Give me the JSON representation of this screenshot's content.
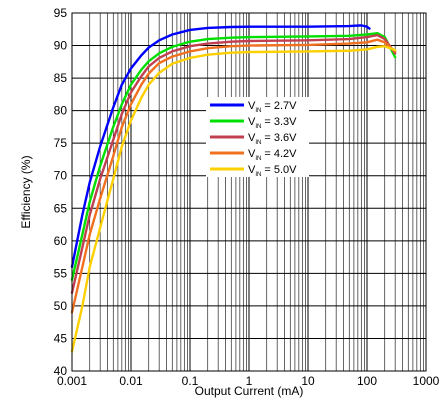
{
  "chart_data": {
    "type": "line",
    "title": "",
    "xlabel": "Output Current (mA)",
    "ylabel": "Efficiency (%)",
    "xscale": "log",
    "xlim": [
      0.001,
      1000
    ],
    "ylim": [
      40,
      95
    ],
    "x_ticks": [
      "0.001",
      "0.01",
      "0.1",
      "1",
      "10",
      "100",
      "1000"
    ],
    "y_ticks": [
      "40",
      "45",
      "50",
      "55",
      "60",
      "65",
      "70",
      "75",
      "80",
      "85",
      "90",
      "95"
    ],
    "grid": true,
    "legend_position": "center",
    "series": [
      {
        "name": "2.7V",
        "legend_prefix": "V",
        "legend_sub": "IN",
        "color": "#0000ff",
        "points": [
          [
            0.001,
            56
          ],
          [
            0.0015,
            64
          ],
          [
            0.002,
            69
          ],
          [
            0.003,
            74.5
          ],
          [
            0.005,
            80.5
          ],
          [
            0.007,
            84
          ],
          [
            0.01,
            86.5
          ],
          [
            0.015,
            88.5
          ],
          [
            0.02,
            89.7
          ],
          [
            0.03,
            90.8
          ],
          [
            0.05,
            91.7
          ],
          [
            0.1,
            92.4
          ],
          [
            0.2,
            92.7
          ],
          [
            0.5,
            92.85
          ],
          [
            1,
            92.9
          ],
          [
            10,
            92.9
          ],
          [
            50,
            93.0
          ],
          [
            80,
            93.1
          ],
          [
            100,
            92.9
          ],
          [
            110,
            92.6
          ]
        ]
      },
      {
        "name": "3.3V",
        "legend_prefix": "V",
        "legend_sub": "IN",
        "color": "#00e000",
        "points": [
          [
            0.001,
            54
          ],
          [
            0.0015,
            61
          ],
          [
            0.002,
            66
          ],
          [
            0.003,
            71.5
          ],
          [
            0.005,
            77.5
          ],
          [
            0.007,
            81
          ],
          [
            0.01,
            84
          ],
          [
            0.015,
            86.3
          ],
          [
            0.02,
            87.6
          ],
          [
            0.03,
            88.8
          ],
          [
            0.05,
            89.8
          ],
          [
            0.1,
            90.6
          ],
          [
            0.2,
            91.0
          ],
          [
            0.5,
            91.2
          ],
          [
            1,
            91.3
          ],
          [
            10,
            91.4
          ],
          [
            50,
            91.5
          ],
          [
            100,
            91.7
          ],
          [
            150,
            91.9
          ],
          [
            200,
            91.3
          ],
          [
            300,
            88.2
          ]
        ]
      },
      {
        "name": "3.6V",
        "legend_prefix": "V",
        "legend_sub": "IN",
        "color": "#c04050",
        "points": [
          [
            0.001,
            52
          ],
          [
            0.0015,
            59
          ],
          [
            0.002,
            64
          ],
          [
            0.003,
            69.5
          ],
          [
            0.005,
            75.5
          ],
          [
            0.007,
            79.5
          ],
          [
            0.01,
            82.8
          ],
          [
            0.015,
            85.3
          ],
          [
            0.02,
            86.8
          ],
          [
            0.03,
            88.1
          ],
          [
            0.05,
            89.1
          ],
          [
            0.1,
            89.9
          ],
          [
            0.2,
            90.3
          ],
          [
            0.5,
            90.6
          ],
          [
            1,
            90.7
          ],
          [
            10,
            90.8
          ],
          [
            50,
            91.0
          ],
          [
            100,
            91.3
          ],
          [
            150,
            91.6
          ],
          [
            200,
            91.0
          ],
          [
            300,
            88.8
          ]
        ]
      },
      {
        "name": "4.2V",
        "legend_prefix": "V",
        "legend_sub": "IN",
        "color": "#f07020",
        "points": [
          [
            0.001,
            49
          ],
          [
            0.0015,
            56
          ],
          [
            0.002,
            61
          ],
          [
            0.003,
            66.5
          ],
          [
            0.005,
            73
          ],
          [
            0.007,
            77.5
          ],
          [
            0.01,
            81
          ],
          [
            0.015,
            84
          ],
          [
            0.02,
            85.7
          ],
          [
            0.03,
            87.3
          ],
          [
            0.05,
            88.3
          ],
          [
            0.1,
            89.1
          ],
          [
            0.2,
            89.6
          ],
          [
            0.5,
            89.9
          ],
          [
            1,
            90.0
          ],
          [
            10,
            90.1
          ],
          [
            50,
            90.3
          ],
          [
            100,
            90.5
          ],
          [
            150,
            90.9
          ],
          [
            200,
            90.5
          ],
          [
            300,
            89.1
          ]
        ]
      },
      {
        "name": "5.0V",
        "legend_prefix": "V",
        "legend_sub": "IN",
        "color": "#ffd000",
        "points": [
          [
            0.001,
            43
          ],
          [
            0.0015,
            50
          ],
          [
            0.002,
            56
          ],
          [
            0.003,
            62
          ],
          [
            0.005,
            69.5
          ],
          [
            0.007,
            74.5
          ],
          [
            0.01,
            78.5
          ],
          [
            0.015,
            82
          ],
          [
            0.02,
            84
          ],
          [
            0.03,
            85.8
          ],
          [
            0.05,
            87.2
          ],
          [
            0.1,
            88.1
          ],
          [
            0.2,
            88.6
          ],
          [
            0.5,
            88.9
          ],
          [
            1,
            89.0
          ],
          [
            10,
            89.1
          ],
          [
            50,
            89.2
          ],
          [
            100,
            89.4
          ],
          [
            150,
            89.8
          ],
          [
            200,
            89.9
          ],
          [
            300,
            89.3
          ]
        ]
      }
    ]
  }
}
